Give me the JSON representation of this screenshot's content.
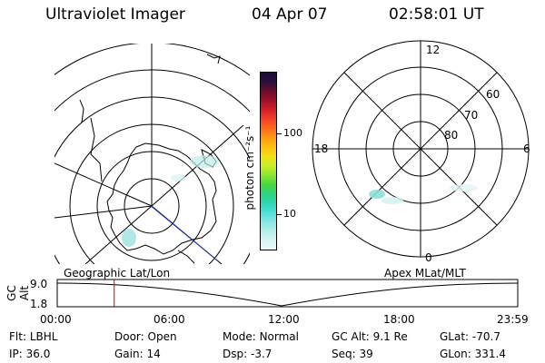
{
  "header": {
    "instrument": "Ultraviolet Imager",
    "date": "04 Apr 07",
    "time": "02:58:01 UT"
  },
  "colorbar": {
    "label": "photon cm⁻²s⁻¹",
    "tick_labels": [
      "100",
      "10"
    ],
    "colors": [
      "#1a0f33",
      "#2a1040",
      "#6a0d2a",
      "#a0102a",
      "#d41f2a",
      "#f4412a",
      "#ff6a1a",
      "#ff9a14",
      "#ffbf10",
      "#f0e014",
      "#c8ef26",
      "#8fe632",
      "#46d83c",
      "#2cd47c",
      "#30d6b4",
      "#4ce0d8",
      "#86e8e4",
      "#b4eeea",
      "#d8f4f2",
      "#eef9f8"
    ]
  },
  "geo_panel": {
    "label": "Geographic Lat/Lon"
  },
  "apex_panel": {
    "label": "Apex MLat/MLT",
    "mlt_labels": [
      "12",
      "18",
      "6",
      "0"
    ],
    "mlat_labels": [
      "60",
      "70",
      "80"
    ]
  },
  "timeline": {
    "ylabel": "GC Alt",
    "ytick_labels": [
      "9.0",
      "1.8"
    ],
    "xtick_labels": [
      "00:00",
      "06:00",
      "12:00",
      "18:00",
      "23:59"
    ],
    "marker_color": "#cc0000",
    "marker_time_hours": 2.97
  },
  "info": {
    "filter_label": "Flt:",
    "filter_value": "LBHL",
    "ip_label": "IP:",
    "ip_value": "36.0",
    "door_label": "Door:",
    "door_value": "Open",
    "gain_label": "Gain:",
    "gain_value": "14",
    "mode_label": "Mode:",
    "mode_value": "Normal",
    "dsp_label": "Dsp:",
    "dsp_value": "-3.7",
    "gcalt_label": "GC Alt:",
    "gcalt_value": "9.1 Re",
    "seq_label": "Seq:",
    "seq_value": "39",
    "glat_label": "GLat:",
    "glat_value": "-70.7",
    "glon_label": "GLon:",
    "glon_value": "331.4"
  }
}
